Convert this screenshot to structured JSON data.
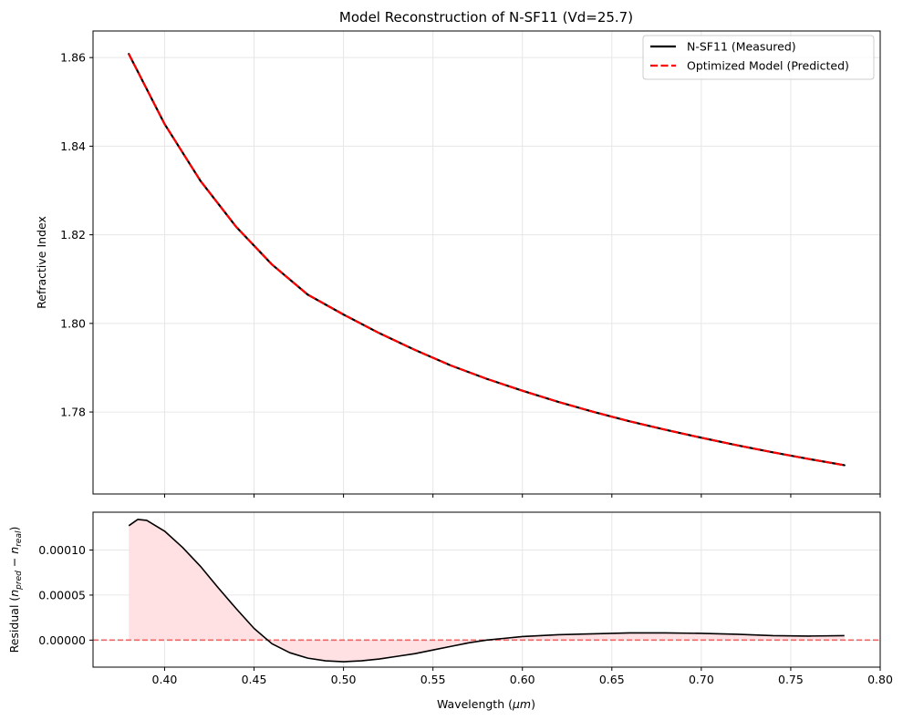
{
  "chart_data": [
    {
      "type": "line",
      "title": "Model Reconstruction of N-SF11 (Vd=25.7)",
      "xlabel": "",
      "ylabel": "Refractive Index",
      "xlim": [
        0.36,
        0.8
      ],
      "ylim": [
        1.7615,
        1.866
      ],
      "x_ticks": [
        0.4,
        0.45,
        0.5,
        0.55,
        0.6,
        0.65,
        0.7,
        0.75,
        0.8
      ],
      "y_ticks": [
        1.78,
        1.8,
        1.82,
        1.84,
        1.86
      ],
      "y_tick_labels": [
        "1.78",
        "1.80",
        "1.82",
        "1.84",
        "1.86"
      ],
      "grid": true,
      "legend_position": "top-right",
      "x": [
        0.38,
        0.4,
        0.42,
        0.44,
        0.46,
        0.48,
        0.5,
        0.52,
        0.54,
        0.56,
        0.58,
        0.6,
        0.62,
        0.64,
        0.66,
        0.68,
        0.7,
        0.72,
        0.74,
        0.76,
        0.78
      ],
      "series": [
        {
          "name": "N-SF11 (Measured)",
          "color": "#000000",
          "style": "solid",
          "values": [
            1.8608,
            1.845,
            1.8322,
            1.8218,
            1.8133,
            1.8065,
            1.802,
            1.7978,
            1.794,
            1.7905,
            1.7875,
            1.7848,
            1.7823,
            1.78,
            1.7779,
            1.776,
            1.7742,
            1.7725,
            1.7709,
            1.7694,
            1.768
          ]
        },
        {
          "name": "Optimized Model (Predicted)",
          "color": "#ff0000",
          "style": "dashed",
          "values": [
            1.8608,
            1.845,
            1.8322,
            1.8218,
            1.8133,
            1.8065,
            1.802,
            1.7978,
            1.794,
            1.7905,
            1.7875,
            1.7848,
            1.7823,
            1.78,
            1.7779,
            1.776,
            1.7742,
            1.7725,
            1.7709,
            1.7694,
            1.768
          ]
        }
      ]
    },
    {
      "type": "area",
      "title": "",
      "xlabel": "Wavelength (μm)",
      "ylabel": "Residual (n_pred − n_real)",
      "xlim": [
        0.36,
        0.8
      ],
      "ylim": [
        -3e-05,
        0.000142
      ],
      "x_ticks": [
        0.4,
        0.45,
        0.5,
        0.55,
        0.6,
        0.65,
        0.7,
        0.75,
        0.8
      ],
      "x_tick_labels": [
        "0.40",
        "0.45",
        "0.50",
        "0.55",
        "0.60",
        "0.65",
        "0.70",
        "0.75",
        "0.80"
      ],
      "y_ticks": [
        0,
        5e-05,
        0.0001
      ],
      "y_tick_labels": [
        "0.00000",
        "0.00005",
        "0.00010"
      ],
      "grid": true,
      "fill_color": "#ffe0e3",
      "line_color": "#000000",
      "zero_line_color": "#ee6666",
      "x": [
        0.38,
        0.385,
        0.39,
        0.4,
        0.41,
        0.42,
        0.43,
        0.44,
        0.45,
        0.46,
        0.47,
        0.48,
        0.49,
        0.5,
        0.51,
        0.52,
        0.53,
        0.54,
        0.55,
        0.56,
        0.57,
        0.58,
        0.59,
        0.6,
        0.62,
        0.64,
        0.66,
        0.68,
        0.7,
        0.72,
        0.74,
        0.76,
        0.78
      ],
      "values": [
        0.000127,
        0.000134,
        0.000133,
        0.000121,
        0.000103,
        8.2e-05,
        5.8e-05,
        3.5e-05,
        1.3e-05,
        -4e-06,
        -1.4e-05,
        -2e-05,
        -2.3e-05,
        -2.4e-05,
        -2.3e-05,
        -2.1e-05,
        -1.8e-05,
        -1.5e-05,
        -1.1e-05,
        -7e-06,
        -3e-06,
        0.0,
        2e-06,
        4e-06,
        6e-06,
        7e-06,
        8e-06,
        8e-06,
        7.5e-06,
        6.5e-06,
        5e-06,
        4.5e-06,
        5e-06
      ]
    }
  ]
}
